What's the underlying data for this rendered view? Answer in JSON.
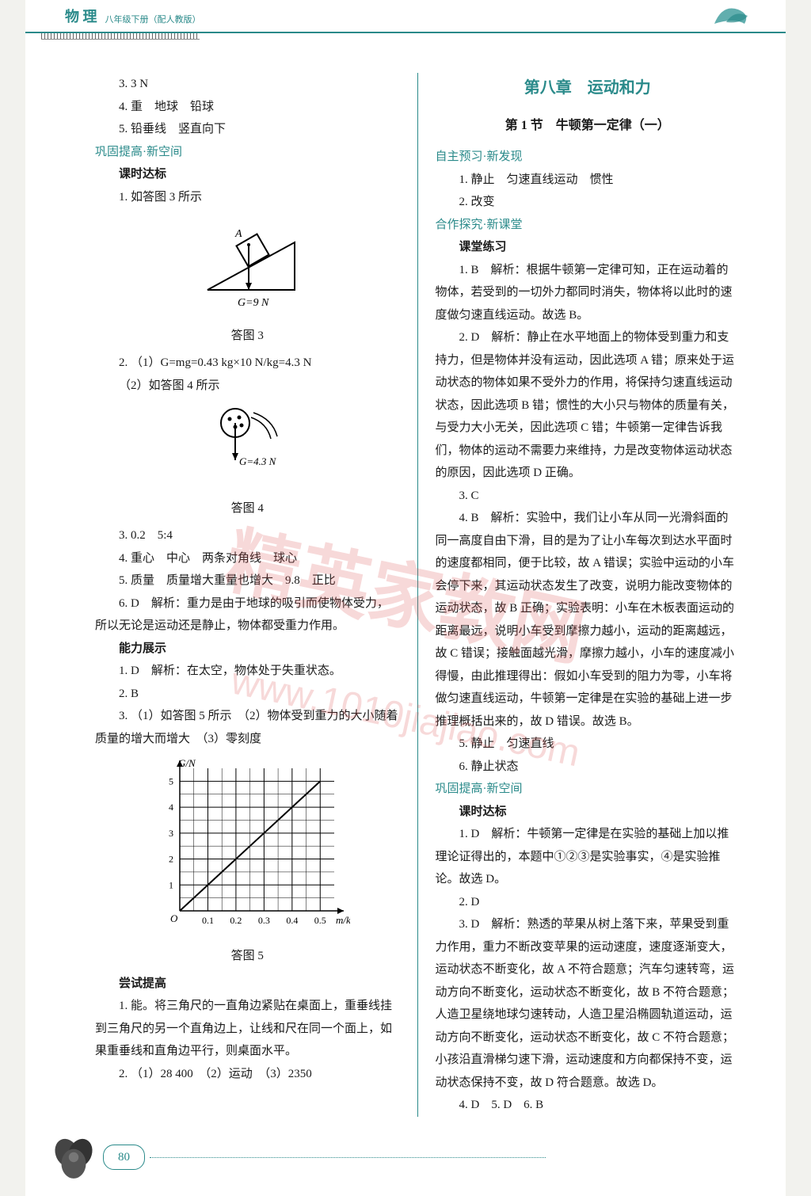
{
  "header": {
    "subject": "物 理",
    "grade": "八年级下册（配人教版）"
  },
  "page_number": "80",
  "watermark_main": "精英家教网",
  "watermark_url": "www.1010jiajiao.com",
  "colors": {
    "teal": "#2a8a8a",
    "text": "#1a1a1a",
    "watermark": "rgba(220,80,80,0.22)"
  },
  "left": {
    "items": [
      "3. 3 N",
      "4. 重　地球　铅球",
      "5. 铅垂线　竖直向下"
    ],
    "sec1": "巩固提高·新空间",
    "sec1b": "课时达标",
    "l1": "1. 如答图 3 所示",
    "fig3_label_A": "A",
    "fig3_label_G": "G=9 N",
    "fig3_caption": "答图 3",
    "l2a": "2. （1）G=mg=0.43 kg×10 N/kg=4.3 N",
    "l2b": "（2）如答图 4 所示",
    "fig4_label_G": "G=4.3 N",
    "fig4_caption": "答图 4",
    "l3": "3. 0.2　5:4",
    "l4": "4. 重心　中心　两条对角线　球心",
    "l5": "5. 质量　质量增大重量也增大　9.8　正比",
    "l6": "6. D　解析：重力是由于地球的吸引而使物体受力，所以无论是运动还是静止，物体都受重力作用。",
    "sec2": "能力展示",
    "l7": "1. D　解析：在太空，物体处于失重状态。",
    "l8": "2. B",
    "l9": "3. （1）如答图 5 所示　（2）物体受到重力的大小随着质量的增大而增大　（3）零刻度",
    "chart": {
      "type": "line",
      "x_label": "m/kg",
      "y_label": "G/N",
      "x_ticks": [
        "0.1",
        "0.2",
        "0.3",
        "0.4",
        "0.5"
      ],
      "y_ticks": [
        "1",
        "2",
        "3",
        "4",
        "5"
      ],
      "xlim": [
        0,
        0.55
      ],
      "ylim": [
        0,
        5.5
      ],
      "points_x": [
        0,
        0.1,
        0.2,
        0.3,
        0.4,
        0.5
      ],
      "points_y": [
        0,
        1,
        2,
        3,
        4,
        5
      ],
      "grid_color": "#000000",
      "line_color": "#000000",
      "background_color": "#ffffff",
      "origin_label": "O"
    },
    "fig5_caption": "答图 5",
    "sec3": "尝试提高",
    "l10": "1. 能。将三角尺的一直角边紧贴在桌面上，重垂线挂到三角尺的另一个直角边上，让线和尺在同一个面上，如果重垂线和直角边平行，则桌面水平。",
    "l11": "2. （1）28 400　（2）运动　（3）2350"
  },
  "right": {
    "chapter": "第八章　运动和力",
    "section": "第 1 节　牛顿第一定律（一）",
    "sec_a": "自主预习·新发现",
    "a1": "1. 静止　匀速直线运动　惯性",
    "a2": "2. 改变",
    "sec_b": "合作探究·新课堂",
    "sec_b2": "课堂练习",
    "b1": "1. B　解析：根据牛顿第一定律可知，正在运动着的物体，若受到的一切外力都同时消失，物体将以此时的速度做匀速直线运动。故选 B。",
    "b2": "2. D　解析：静止在水平地面上的物体受到重力和支持力，但是物体并没有运动，因此选项 A 错；原来处于运动状态的物体如果不受外力的作用，将保持匀速直线运动状态，因此选项 B 错；惯性的大小只与物体的质量有关，与受力大小无关，因此选项 C 错；牛顿第一定律告诉我们，物体的运动不需要力来维持，力是改变物体运动状态的原因，因此选项 D 正确。",
    "b3": "3. C",
    "b4": "4. B　解析：实验中，我们让小车从同一光滑斜面的同一高度自由下滑，目的是为了让小车每次到达水平面时的速度都相同，便于比较，故 A 错误；实验中运动的小车会停下来，其运动状态发生了改变，说明力能改变物体的运动状态，故 B 正确；实验表明：小车在木板表面运动的距离最远，说明小车受到摩擦力越小，运动的距离越远，故 C 错误；接触面越光滑，摩擦力越小，小车的速度减小得慢，由此推理得出：假如小车受到的阻力为零，小车将做匀速直线运动，牛顿第一定律是在实验的基础上进一步推理概括出来的，故 D 错误。故选 B。",
    "b5": "5. 静止　匀速直线",
    "b6": "6. 静止状态",
    "sec_c": "巩固提高·新空间",
    "sec_c2": "课时达标",
    "c1": "1. D　解析：牛顿第一定律是在实验的基础上加以推理论证得出的，本题中①②③是实验事实，④是实验推论。故选 D。",
    "c2": "2. D",
    "c3": "3. D　解析：熟透的苹果从树上落下来，苹果受到重力作用，重力不断改变苹果的运动速度，速度逐渐变大，运动状态不断变化，故 A 不符合题意；汽车匀速转弯，运动方向不断变化，运动状态不断变化，故 B 不符合题意；人造卫星绕地球匀速转动，人造卫星沿椭圆轨道运动，运动方向不断变化，运动状态不断变化，故 C 不符合题意；小孩沿直滑梯匀速下滑，运动速度和方向都保持不变，运动状态保持不变，故 D 符合题意。故选 D。",
    "c4": "4. D　5. D　6. B"
  }
}
